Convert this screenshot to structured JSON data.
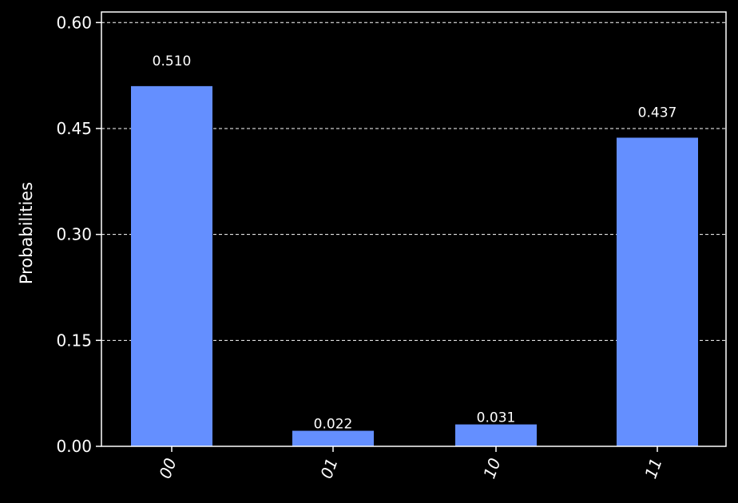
{
  "chart_data": {
    "type": "bar",
    "ylabel": "Probabilities",
    "categories": [
      "00",
      "01",
      "10",
      "11"
    ],
    "values": [
      0.51,
      0.022,
      0.031,
      0.437
    ],
    "data_labels": [
      "0.510",
      "0.022",
      "0.031",
      "0.437"
    ],
    "ylim": [
      0,
      0.615
    ],
    "yticks": [
      0,
      0.15,
      0.3,
      0.45,
      0.6
    ],
    "ytick_labels": [
      "0.00",
      "0.15",
      "0.30",
      "0.45",
      "0.60"
    ],
    "grid": "horizontal-dashed",
    "colors": {
      "bar": "#648fff",
      "background": "#000000",
      "axis": "#ffffff",
      "grid": "#ffffff"
    }
  }
}
